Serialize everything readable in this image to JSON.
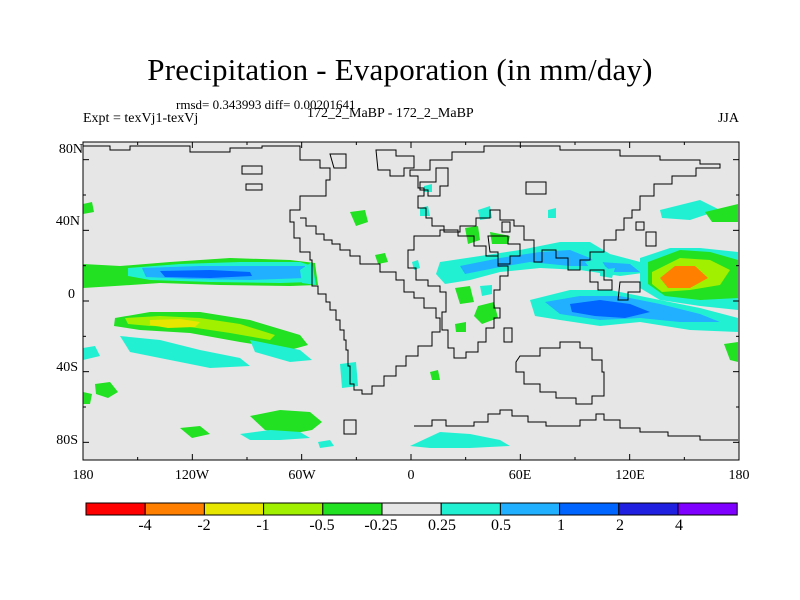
{
  "title": "Precipitation - Evaporation (in mm/day)",
  "stats": "rmsd= 0.343993 diff= 0.00201641",
  "experiment": "Expt = texVj1-texVj",
  "subtitle": "172_2_MaBP - 172_2_MaBP",
  "season": "JJA",
  "colors": {
    "background": "#e6e6e6",
    "coast": "#000000"
  },
  "map_data": {
    "projection": "cylindrical-equidistant",
    "lon_range": [
      -180,
      180
    ],
    "lat_range": [
      -90,
      90
    ],
    "x_ticks": [
      "180",
      "120W",
      "60W",
      "0",
      "60E",
      "120E",
      "180"
    ],
    "y_ticks": [
      "80N",
      "40N",
      "0",
      "40S",
      "80S"
    ]
  },
  "colorbar": {
    "colors": [
      "#ff0000",
      "#ff8000",
      "#e6e600",
      "#a0f000",
      "#22e022",
      "#e6e6e6",
      "#22f0d2",
      "#20b0ff",
      "#0064ff",
      "#2020e0",
      "#8000ff"
    ],
    "labels": [
      "-4",
      "-2",
      "-1",
      "-0.5",
      "-0.25",
      "0.25",
      "0.5",
      "1",
      "2",
      "4"
    ]
  }
}
